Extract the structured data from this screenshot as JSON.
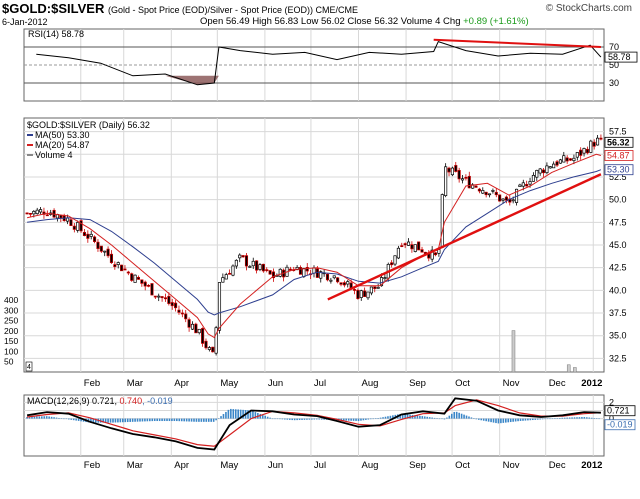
{
  "header": {
    "symbol": "$GOLD:$SILVER",
    "subtitle": "(Gold - Spot Price (EOD)/Silver - Spot Price (EOD))  CME/CME",
    "brand": "© StockCharts.com",
    "date": "6-Jan-2012",
    "quote": {
      "open_label": "Open",
      "open": "56.49",
      "high_label": "High",
      "high": "56.83",
      "low_label": "Low",
      "low": "56.02",
      "close_label": "Close",
      "close": "56.32",
      "volume_label": "Volume",
      "volume": "4",
      "chg_label": "Chg",
      "chg": "+0.89 (+1.61%)"
    }
  },
  "colors": {
    "price": "#000000",
    "ma50": "#2e3f8f",
    "ma20": "#d42020",
    "trend": "#e01010",
    "rsi_fill": "#8c5a5a",
    "macd_hist": "#3a86c8",
    "grid": "#d8d8d8",
    "positive": "#1a9a1a"
  },
  "chart_data": [
    {
      "type": "line",
      "panel": "rsi",
      "legend": "RSI(14) 58.78",
      "y_ticks": [
        "70",
        "50",
        "30"
      ],
      "ylim": [
        10,
        90
      ],
      "current_label": "58.78",
      "x": [
        "2011-01-03",
        "2011-01-24",
        "2011-02-14",
        "2011-03-07",
        "2011-03-28",
        "2011-04-18",
        "2011-04-29",
        "2011-05-02",
        "2011-05-16",
        "2011-06-06",
        "2011-06-27",
        "2011-07-18",
        "2011-08-08",
        "2011-08-29",
        "2011-09-19",
        "2011-09-22",
        "2011-10-10",
        "2011-10-31",
        "2011-11-21",
        "2011-12-12",
        "2011-12-30",
        "2012-01-06"
      ],
      "series": [
        {
          "values": [
            62,
            58,
            52,
            38,
            40,
            28,
            30,
            70,
            66,
            62,
            64,
            56,
            64,
            62,
            65,
            76,
            66,
            60,
            63,
            62,
            72,
            58.78
          ]
        }
      ],
      "annotations": [
        {
          "type": "trendline",
          "from": [
            "2011-09-19",
            78
          ],
          "to": [
            "2012-01-06",
            70
          ]
        }
      ]
    },
    {
      "type": "candlestick",
      "panel": "price",
      "legend": [
        "$GOLD:$SILVER (Daily) 56.32",
        "MA(50) 53.30",
        "MA(20) 54.87",
        "Volume 4"
      ],
      "y_ticks": [
        "57.5",
        "55.0",
        "52.5",
        "50.0",
        "47.5",
        "45.0",
        "42.5",
        "40.0",
        "37.5",
        "35.0",
        "32.5"
      ],
      "ylim": [
        31,
        59
      ],
      "value_labels": [
        "56.32",
        "54.87",
        "53.30"
      ],
      "volume_ticks": [
        "400",
        "300",
        "250",
        "200",
        "150",
        "100",
        "50"
      ],
      "x": [
        "2010-12-28",
        "2011-01-10",
        "2011-01-24",
        "2011-02-07",
        "2011-02-21",
        "2011-03-07",
        "2011-03-21",
        "2011-04-04",
        "2011-04-18",
        "2011-04-25",
        "2011-04-29",
        "2011-05-02",
        "2011-05-16",
        "2011-06-06",
        "2011-06-20",
        "2011-07-05",
        "2011-07-18",
        "2011-08-01",
        "2011-08-15",
        "2011-08-29",
        "2011-09-12",
        "2011-09-22",
        "2011-09-26",
        "2011-10-10",
        "2011-10-24",
        "2011-11-07",
        "2011-11-21",
        "2011-12-05",
        "2011-12-19",
        "2012-01-03",
        "2012-01-06"
      ],
      "series": [
        {
          "name": "Close",
          "values": [
            48.5,
            48.8,
            47.8,
            45.8,
            43.5,
            41.5,
            39.8,
            38.0,
            35.5,
            33.5,
            32.5,
            41.0,
            43.5,
            41.5,
            42.5,
            42.0,
            41.5,
            39.5,
            40.5,
            45.5,
            44.5,
            43.5,
            53.5,
            52.0,
            51.0,
            49.5,
            52.5,
            54.0,
            54.5,
            56.5,
            56.32
          ]
        },
        {
          "name": "MA(20)",
          "values": [
            48.0,
            48.5,
            48.2,
            46.8,
            45.0,
            43.0,
            41.0,
            39.0,
            37.0,
            35.2,
            34.8,
            35.8,
            38.5,
            41.5,
            42.3,
            42.5,
            42.0,
            40.5,
            40.5,
            42.5,
            43.8,
            44.5,
            47.5,
            51.5,
            51.8,
            50.5,
            51.5,
            53.0,
            54.0,
            55.0,
            54.87
          ]
        },
        {
          "name": "MA(50)",
          "values": [
            47.5,
            47.8,
            48.0,
            47.8,
            46.5,
            44.8,
            43.0,
            41.0,
            39.0,
            37.6,
            37.3,
            37.5,
            38.2,
            39.5,
            41.2,
            42.0,
            41.8,
            41.0,
            40.8,
            41.5,
            42.5,
            43.2,
            44.5,
            47.0,
            48.5,
            50.0,
            51.0,
            51.8,
            52.5,
            53.1,
            53.3
          ]
        }
      ],
      "volume": [
        {
          "date": "2011-11-10",
          "value": 230
        },
        {
          "date": "2011-12-16",
          "value": 40
        },
        {
          "date": "2011-12-20",
          "value": 25
        }
      ],
      "annotations": [
        {
          "type": "trendline",
          "from": [
            "2011-07-12",
            39.0
          ],
          "to": [
            "2012-01-06",
            52.8
          ]
        }
      ]
    },
    {
      "type": "line",
      "panel": "macd",
      "legend": "MACD(12,26,9) 0.721, 0.740, -0.019",
      "legend_parts": [
        "MACD(12,26,9) 0.721, ",
        "0.740",
        ", -0.019"
      ],
      "y_ticks": [
        "2",
        "1",
        "0"
      ],
      "ylim": [
        -4.6,
        2.9
      ],
      "value_labels": [
        "0.721",
        "-0.019"
      ],
      "x": [
        "2010-12-28",
        "2011-01-10",
        "2011-01-24",
        "2011-02-07",
        "2011-02-21",
        "2011-03-07",
        "2011-03-21",
        "2011-04-04",
        "2011-04-18",
        "2011-04-29",
        "2011-05-09",
        "2011-05-23",
        "2011-06-06",
        "2011-06-20",
        "2011-07-05",
        "2011-07-18",
        "2011-08-01",
        "2011-08-15",
        "2011-08-29",
        "2011-09-12",
        "2011-09-26",
        "2011-10-03",
        "2011-10-17",
        "2011-10-31",
        "2011-11-14",
        "2011-11-28",
        "2011-12-12",
        "2011-12-26",
        "2012-01-06"
      ],
      "series": [
        {
          "name": "MACD",
          "values": [
            0.4,
            0.8,
            0.6,
            -0.4,
            -1.2,
            -1.9,
            -2.3,
            -2.8,
            -3.6,
            -3.8,
            -0.8,
            1.0,
            0.9,
            0.5,
            0.3,
            -0.3,
            -1.0,
            -0.8,
            0.5,
            0.9,
            0.6,
            2.5,
            2.2,
            1.0,
            0.4,
            0.2,
            0.4,
            0.8,
            0.721
          ]
        },
        {
          "name": "Signal",
          "values": [
            0.2,
            0.5,
            0.7,
            0.1,
            -0.7,
            -1.5,
            -2.0,
            -2.5,
            -3.2,
            -3.4,
            -2.0,
            0.0,
            0.9,
            0.7,
            0.4,
            -0.1,
            -0.7,
            -0.9,
            -0.1,
            0.6,
            0.7,
            1.6,
            2.3,
            1.6,
            0.7,
            0.3,
            0.3,
            0.6,
            0.74
          ]
        },
        {
          "name": "Histogram",
          "values": [
            0.2,
            0.3,
            -0.1,
            -0.5,
            -0.5,
            -0.4,
            -0.3,
            -0.3,
            -0.4,
            -0.4,
            1.2,
            1.0,
            0.0,
            -0.2,
            -0.1,
            -0.2,
            -0.3,
            0.1,
            0.6,
            0.3,
            -0.1,
            0.9,
            -0.1,
            -0.6,
            -0.3,
            -0.1,
            0.1,
            0.2,
            -0.019
          ]
        }
      ]
    }
  ],
  "x_axis": {
    "month_labels": [
      "Feb",
      "Mar",
      "Apr",
      "May",
      "Jun",
      "Jul",
      "Aug",
      "Sep",
      "Oct",
      "Nov",
      "Dec",
      "2012"
    ],
    "month_dates": [
      "2011-02-01",
      "2011-03-01",
      "2011-04-01",
      "2011-05-01",
      "2011-06-01",
      "2011-07-01",
      "2011-08-01",
      "2011-09-01",
      "2011-10-01",
      "2011-11-01",
      "2011-12-01",
      "2012-01-01"
    ]
  }
}
